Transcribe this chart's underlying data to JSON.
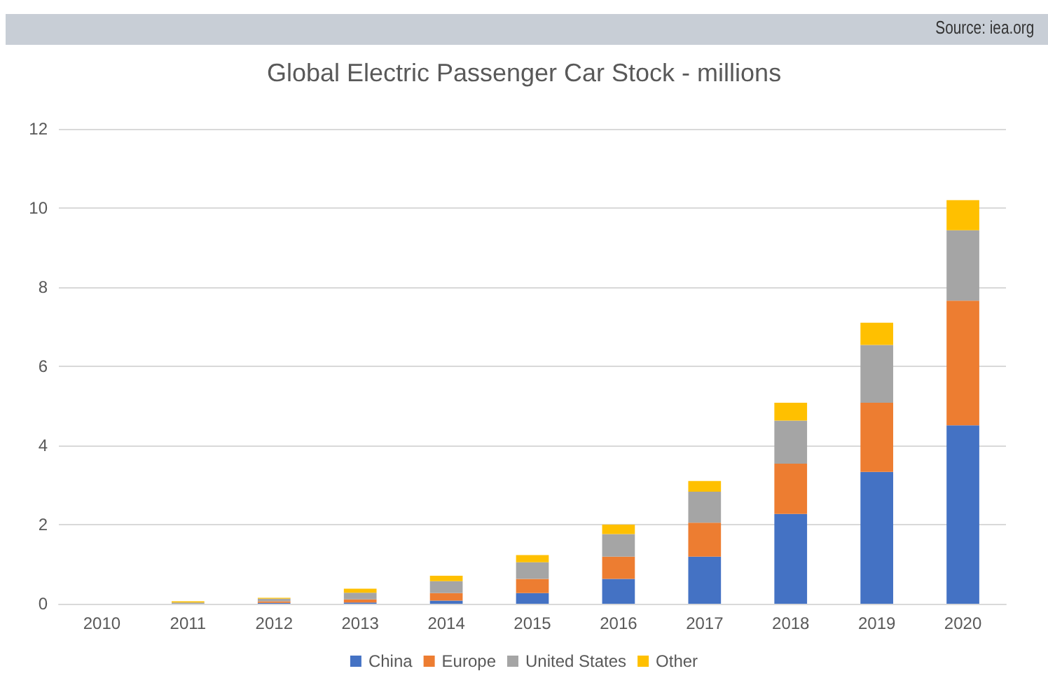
{
  "chart_data": {
    "type": "bar",
    "stacked": true,
    "title": "Global Electric Passenger Car Stock - millions",
    "annotations": [
      "Source: iea.org"
    ],
    "categories": [
      "2010",
      "2011",
      "2012",
      "2013",
      "2014",
      "2015",
      "2016",
      "2017",
      "2018",
      "2019",
      "2020"
    ],
    "series": [
      {
        "name": "China",
        "color": "#4472c4",
        "values": [
          null,
          null,
          0.02,
          0.03,
          0.08,
          0.27,
          0.63,
          1.19,
          2.27,
          3.33,
          4.51
        ]
      },
      {
        "name": "Europe",
        "color": "#ed7d31",
        "values": [
          null,
          null,
          0.04,
          0.08,
          0.19,
          0.36,
          0.56,
          0.86,
          1.27,
          1.75,
          3.15
        ]
      },
      {
        "name": "United States",
        "color": "#a5a5a5",
        "values": [
          null,
          0.03,
          0.07,
          0.17,
          0.3,
          0.42,
          0.57,
          0.78,
          1.09,
          1.46,
          1.78
        ]
      },
      {
        "name": "Other",
        "color": "#ffc000",
        "values": [
          null,
          0.03,
          0.02,
          0.1,
          0.14,
          0.18,
          0.24,
          0.27,
          0.45,
          0.56,
          0.76
        ]
      }
    ],
    "ylim": [
      0,
      12
    ],
    "yticks": [
      0,
      2,
      4,
      6,
      8,
      10,
      12
    ],
    "grid": "y",
    "legend": "bottom"
  }
}
